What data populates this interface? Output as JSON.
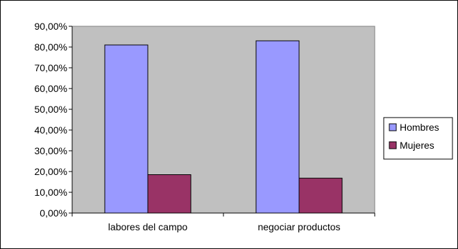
{
  "chart_data": {
    "type": "bar",
    "title": "",
    "xlabel": "",
    "ylabel": "",
    "categories": [
      "labores del campo",
      "negociar productos"
    ],
    "series": [
      {
        "name": "Hombres",
        "values": [
          81.0,
          83.0
        ],
        "color": "#9999ff"
      },
      {
        "name": "Mujeres",
        "values": [
          18.5,
          16.8
        ],
        "color": "#993366"
      }
    ],
    "ylim": [
      0,
      90
    ],
    "yticks": [
      "0,00%",
      "10,00%",
      "20,00%",
      "30,00%",
      "40,00%",
      "50,00%",
      "60,00%",
      "70,00%",
      "80,00%",
      "90,00%"
    ],
    "ytick_values": [
      0,
      10,
      20,
      30,
      40,
      50,
      60,
      70,
      80,
      90
    ],
    "plot_background": "#c0c0c0",
    "legend_position": "right",
    "grid": false
  }
}
